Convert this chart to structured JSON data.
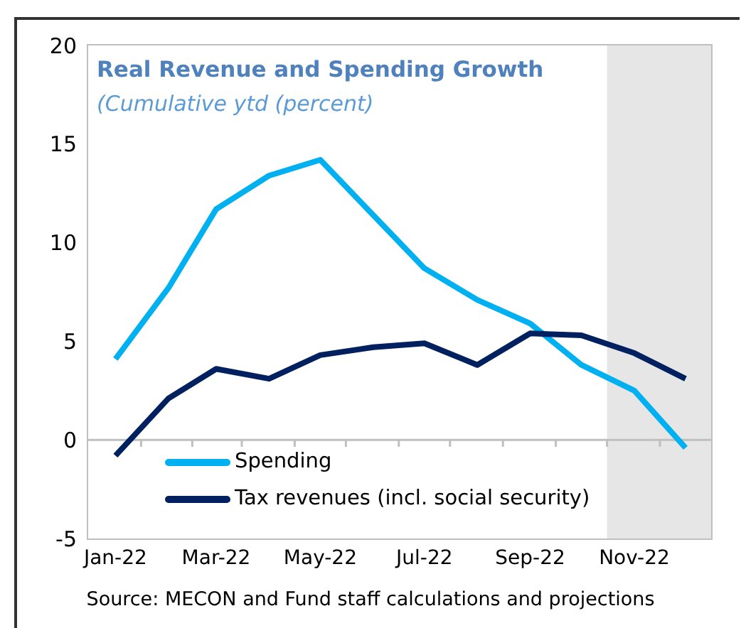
{
  "chart_data": {
    "type": "line",
    "title": "Real Revenue and Spending Growth",
    "subtitle": "(Cumulative ytd (percent)",
    "x": [
      "2022-01-01",
      "2022-02-01",
      "2022-03-01",
      "2022-04-01",
      "2022-05-01",
      "2022-06-01",
      "2022-07-01",
      "2022-08-01",
      "2022-09-01",
      "2022-10-01",
      "2022-11-01",
      "2022-12-01"
    ],
    "xlim": [
      "2021-12-16",
      "2022-12-16"
    ],
    "xticks": [
      {
        "value": "2022-01-01",
        "label": "Jan-22"
      },
      {
        "value": "2022-01-16",
        "label": null
      },
      {
        "value": "2022-02-15",
        "label": null
      },
      {
        "value": "2022-03-01",
        "label": "Mar-22"
      },
      {
        "value": "2022-03-16",
        "label": null
      },
      {
        "value": "2022-04-16",
        "label": null
      },
      {
        "value": "2022-05-01",
        "label": "May-22"
      },
      {
        "value": "2022-05-16",
        "label": null
      },
      {
        "value": "2022-06-16",
        "label": null
      },
      {
        "value": "2022-07-01",
        "label": "Jul-22"
      },
      {
        "value": "2022-07-16",
        "label": null
      },
      {
        "value": "2022-08-16",
        "label": null
      },
      {
        "value": "2022-09-01",
        "label": "Sep-22"
      },
      {
        "value": "2022-09-16",
        "label": null
      },
      {
        "value": "2022-10-16",
        "label": null
      },
      {
        "value": "2022-11-01",
        "label": "Nov-22"
      },
      {
        "value": "2022-11-16",
        "label": null
      }
    ],
    "series": [
      {
        "name": "Spending",
        "color": "#00b0f0",
        "values": [
          4.1,
          7.7,
          11.7,
          13.4,
          14.2,
          11.4,
          8.7,
          7.1,
          5.9,
          3.8,
          2.5,
          -0.4
        ]
      },
      {
        "name": "Tax revenues (incl. social security)",
        "color": "#002060",
        "values": [
          -0.8,
          2.1,
          3.6,
          3.1,
          4.3,
          4.7,
          4.9,
          3.8,
          5.4,
          5.3,
          4.4,
          3.1
        ]
      }
    ],
    "ylim": [
      -5,
      20
    ],
    "yticks": [
      -5,
      0,
      5,
      10,
      15,
      20
    ],
    "grid": false,
    "legend": "bottom left",
    "marker": "none",
    "line_style": "solid",
    "bands": [
      {
        "axis": "x",
        "from": "2022-10-16",
        "to": "2022-12-16",
        "color": "#e6e6e6"
      }
    ],
    "ref_lines": [
      {
        "axis": "y",
        "value": 0,
        "color": "#bfbfbf"
      }
    ],
    "annotations": [
      "Source: MECON and Fund staff calculations and projections"
    ]
  }
}
